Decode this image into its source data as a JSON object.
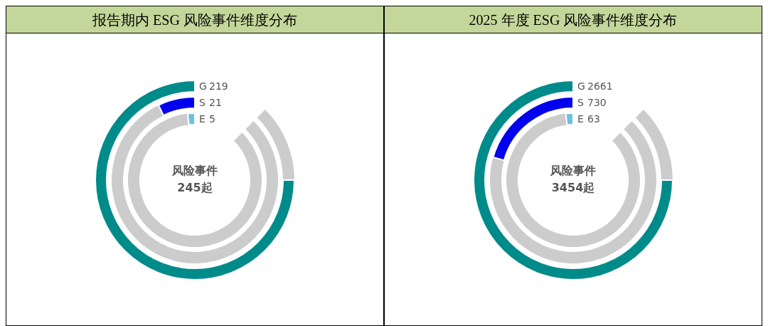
{
  "chart_data": [
    {
      "type": "other",
      "title": "报告期内 ESG 风险事件维度分布",
      "categories": [
        "G",
        "S",
        "E"
      ],
      "values": [
        219,
        21,
        5
      ],
      "colors": [
        "#008b8b",
        "#0000ee",
        "#6ec0e0"
      ],
      "data_labels": true,
      "annotations": [
        "风险事件",
        "245起"
      ]
    },
    {
      "type": "other",
      "title": "2025 年度 ESG 风险事件维度分布",
      "categories": [
        "G",
        "S",
        "E"
      ],
      "values": [
        2661,
        730,
        63
      ],
      "colors": [
        "#008b8b",
        "#0000ee",
        "#6ec0e0"
      ],
      "data_labels": true,
      "annotations": [
        "风险事件",
        "3454起"
      ]
    }
  ]
}
